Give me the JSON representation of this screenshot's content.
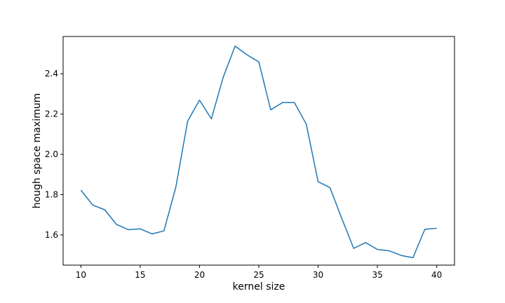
{
  "chart_data": {
    "type": "line",
    "title": "",
    "xlabel": "kernel size",
    "ylabel": "hough space maximum",
    "xlim": [
      8.5,
      41.5
    ],
    "ylim": [
      1.45,
      2.585
    ],
    "x_ticks": [
      10,
      15,
      20,
      25,
      30,
      35,
      40
    ],
    "x_tick_labels": [
      "10",
      "15",
      "20",
      "25",
      "30",
      "35",
      "40"
    ],
    "y_ticks": [
      1.6,
      1.8,
      2.0,
      2.2,
      2.4
    ],
    "y_tick_labels": [
      "1.6",
      "1.8",
      "2.0",
      "2.2",
      "2.4"
    ],
    "grid": false,
    "series": [
      {
        "color": "#1f77b4",
        "x": [
          10,
          11,
          12,
          13,
          14,
          15,
          16,
          17,
          18,
          19,
          20,
          21,
          22,
          23,
          24,
          25,
          26,
          27,
          28,
          29,
          30,
          31,
          32,
          33,
          34,
          35,
          36,
          37,
          38,
          39,
          40
        ],
        "y": [
          1.822,
          1.748,
          1.725,
          1.652,
          1.626,
          1.63,
          1.605,
          1.62,
          1.836,
          2.165,
          2.269,
          2.176,
          2.383,
          2.537,
          2.494,
          2.459,
          2.221,
          2.257,
          2.257,
          2.15,
          1.864,
          1.835,
          1.681,
          1.533,
          1.562,
          1.528,
          1.521,
          1.498,
          1.487,
          1.628,
          1.633
        ]
      }
    ]
  }
}
